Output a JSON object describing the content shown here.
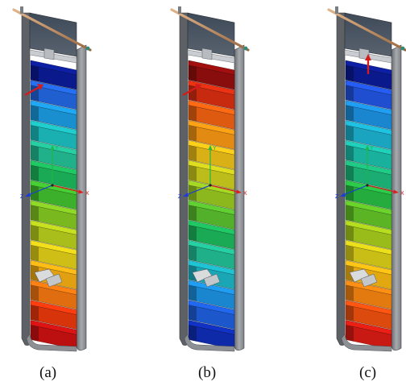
{
  "figure": {
    "panels": [
      {
        "caption": "(a)",
        "slat_colors": [
          "#0a1a8c",
          "#1f5fcf",
          "#1a8fcf",
          "#1aafb0",
          "#20b08a",
          "#1aaa55",
          "#3cb02a",
          "#7ab820",
          "#a9be1a",
          "#cfbe16",
          "#e0a012",
          "#e06e10",
          "#d8340c",
          "#bc1010"
        ],
        "axis": {
          "labels": [
            "Y",
            "X",
            "Z"
          ],
          "colors": [
            "#1db84a",
            "#d92020",
            "#1a3ad8"
          ]
        },
        "indicators": {
          "red_arrow": "horizontal"
        }
      },
      {
        "caption": "(b)",
        "slat_colors": [
          "#8a0d0d",
          "#c82a10",
          "#dd5a10",
          "#e28a12",
          "#d9b016",
          "#bcbc1a",
          "#8cb81e",
          "#52b02a",
          "#1aaa55",
          "#1fb08a",
          "#1aa6b4",
          "#1a86cf",
          "#1c58cc",
          "#0e2aa8"
        ],
        "axis": {
          "labels": [
            "Y",
            "X",
            "Z"
          ],
          "colors": [
            "#1db84a",
            "#d92020",
            "#1a3ad8"
          ]
        },
        "indicators": {
          "red_arrow": "horizontal"
        }
      },
      {
        "caption": "(c)",
        "slat_colors": [
          "#0a1a8c",
          "#1f4fd0",
          "#1a86cf",
          "#1aa4c0",
          "#1ab09e",
          "#1aac72",
          "#24ad3e",
          "#5ab424",
          "#9abc1a",
          "#c8be16",
          "#e2a812",
          "#e37a10",
          "#dc4a0e",
          "#c81a12"
        ],
        "axis": {
          "labels": [
            "Y",
            "X",
            "Z"
          ],
          "colors": [
            "#1db84a",
            "#d92020",
            "#1a3ad8"
          ]
        },
        "indicators": {
          "red_arrow": "vertical"
        }
      }
    ]
  },
  "icons": {
    "red_arrow": "arrow-icon",
    "axis_triad": "coordinate-axes-icon",
    "bracket": "bracket-icon"
  }
}
